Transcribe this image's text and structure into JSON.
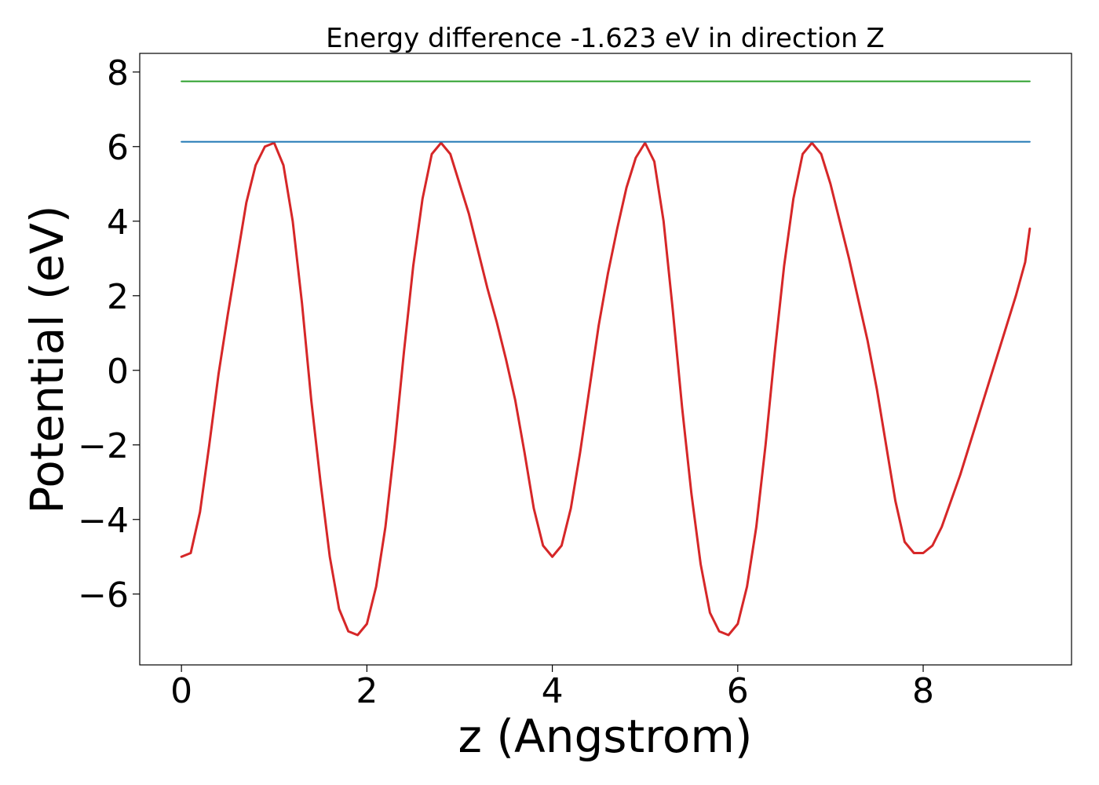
{
  "chart_data": {
    "type": "line",
    "title": "Energy difference -1.623 eV in direction Z",
    "xlabel": "z (Angstrom)",
    "ylabel": "Potential (eV)",
    "xlim": [
      -0.45,
      9.6
    ],
    "ylim": [
      -7.9,
      8.5
    ],
    "x_ticks": [
      0,
      2,
      4,
      6,
      8
    ],
    "y_ticks": [
      -6,
      -4,
      -2,
      0,
      2,
      4,
      6,
      8
    ],
    "x_tick_labels": [
      "0",
      "2",
      "4",
      "6",
      "8"
    ],
    "y_tick_labels": [
      "−6",
      "−4",
      "−2",
      "0",
      "2",
      "4",
      "6",
      "8"
    ],
    "grid": false,
    "legend": "none",
    "series": [
      {
        "color": "#d62728",
        "x": [
          0.0,
          0.1,
          0.2,
          0.3,
          0.4,
          0.5,
          0.6,
          0.7,
          0.8,
          0.9,
          1.0,
          1.1,
          1.2,
          1.3,
          1.4,
          1.5,
          1.6,
          1.7,
          1.8,
          1.9,
          2.0,
          2.1,
          2.2,
          2.3,
          2.4,
          2.5,
          2.6,
          2.7,
          2.8,
          2.9,
          3.0,
          3.1,
          3.2,
          3.3,
          3.4,
          3.5,
          3.6,
          3.7,
          3.8,
          3.9,
          4.0,
          4.1,
          4.2,
          4.3,
          4.4,
          4.5,
          4.6,
          4.7,
          4.8,
          4.9,
          5.0,
          5.1,
          5.2,
          5.3,
          5.4,
          5.5,
          5.6,
          5.7,
          5.8,
          5.9,
          6.0,
          6.1,
          6.2,
          6.3,
          6.4,
          6.5,
          6.6,
          6.7,
          6.8,
          6.9,
          7.0,
          7.1,
          7.2,
          7.3,
          7.4,
          7.5,
          7.6,
          7.7,
          7.8,
          7.9,
          8.0,
          8.1,
          8.2,
          8.3,
          8.4,
          8.5,
          8.6,
          8.7,
          8.8,
          8.9,
          9.0,
          9.1,
          9.15
        ],
        "y": [
          -5.0,
          -4.9,
          -3.8,
          -2.0,
          -0.1,
          1.5,
          3.0,
          4.5,
          5.5,
          6.0,
          6.1,
          5.5,
          4.0,
          1.8,
          -0.8,
          -3.0,
          -5.0,
          -6.4,
          -7.0,
          -7.1,
          -6.8,
          -5.8,
          -4.2,
          -2.0,
          0.5,
          2.8,
          4.6,
          5.8,
          6.1,
          5.8,
          5.0,
          4.2,
          3.2,
          2.2,
          1.3,
          0.3,
          -0.8,
          -2.2,
          -3.7,
          -4.7,
          -5.0,
          -4.7,
          -3.7,
          -2.2,
          -0.5,
          1.2,
          2.6,
          3.8,
          4.9,
          5.7,
          6.1,
          5.6,
          4.0,
          1.6,
          -1.0,
          -3.3,
          -5.2,
          -6.5,
          -7.0,
          -7.1,
          -6.8,
          -5.8,
          -4.2,
          -2.0,
          0.5,
          2.8,
          4.6,
          5.8,
          6.1,
          5.8,
          5.0,
          4.0,
          3.0,
          1.9,
          0.8,
          -0.5,
          -2.0,
          -3.5,
          -4.6,
          -4.9,
          -4.9,
          -4.7,
          -4.2,
          -3.5,
          -2.8,
          -2.0,
          -1.2,
          -0.4,
          0.4,
          1.2,
          2.0,
          2.9,
          3.8
        ]
      },
      {
        "color": "#1f77b4",
        "x": [
          0.0,
          9.15
        ],
        "y": [
          6.13,
          6.13
        ]
      },
      {
        "color": "#2ca02c",
        "x": [
          0.0,
          9.15
        ],
        "y": [
          7.75,
          7.75
        ]
      }
    ]
  }
}
